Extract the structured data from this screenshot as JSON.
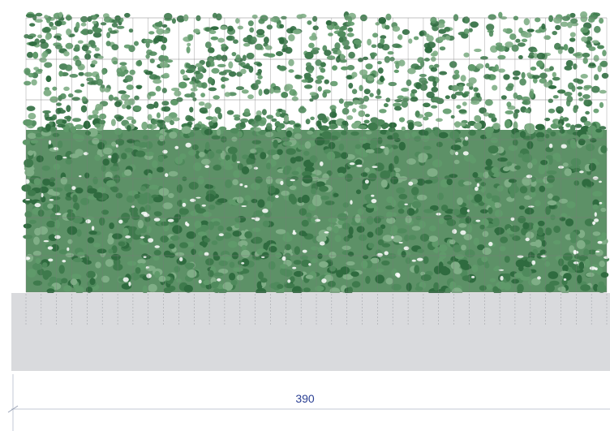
{
  "dimension": {
    "width_label": "390"
  },
  "colors": {
    "foliage_dark": "#2f6b3f",
    "foliage_mid": "#4f8a5c",
    "foliage_light": "#7fae86",
    "grid_line": "#7a7a7a",
    "base_panel": "#d9dadd",
    "dimension_line": "#c3cad6",
    "dimension_text": "#2a3f93"
  }
}
